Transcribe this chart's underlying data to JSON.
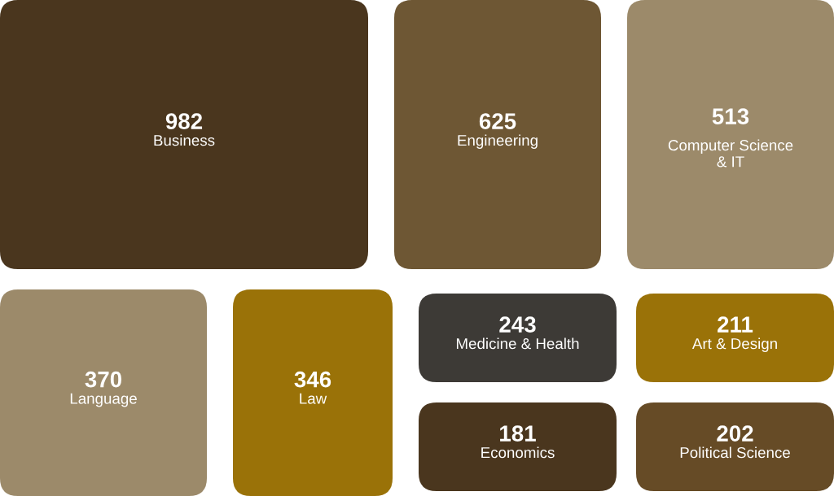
{
  "chart_data": {
    "type": "other",
    "categories": [
      "Business",
      "Engineering",
      "Computer Science\n& IT",
      "Language",
      "Law",
      "Medicine & Health",
      "Art & Design",
      "Economics",
      "Political Science"
    ],
    "values": [
      982,
      625,
      513,
      370,
      346,
      243,
      211,
      181,
      202
    ],
    "colors": [
      "#4a361e",
      "#6e5734",
      "#9c8a6a",
      "#9c8a6a",
      "#9a7208",
      "#3d3a36",
      "#9a7208",
      "#4a361e",
      "#664b26"
    ],
    "data_labels": true
  }
}
